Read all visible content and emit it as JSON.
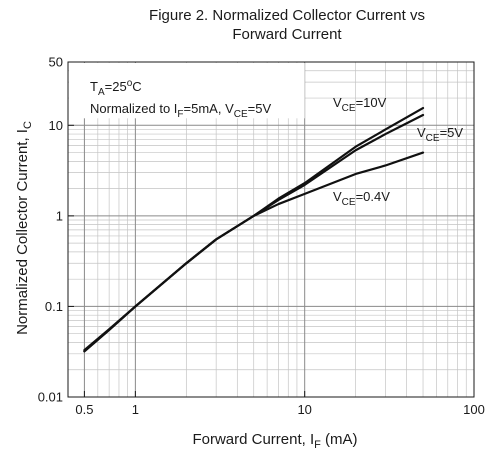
{
  "chart_data": {
    "type": "line",
    "title": [
      "Figure 2. Normalized Collector Current vs",
      "Forward Current"
    ],
    "xlabel": {
      "main": "Forward Current, I",
      "sub": "F",
      "suffix": " (mA)"
    },
    "ylabel": {
      "main": "Normalized Collector Current, I",
      "sub": "C"
    },
    "xscale": "log",
    "yscale": "log",
    "xlim": [
      0.4,
      100
    ],
    "ylim": [
      0.01,
      50
    ],
    "x_ticks": [
      {
        "value": 0.5,
        "label": "0.5"
      },
      {
        "value": 1,
        "label": "1"
      },
      {
        "value": 10,
        "label": "10"
      },
      {
        "value": 100,
        "label": "100"
      }
    ],
    "y_ticks": [
      {
        "value": 0.01,
        "label": "0.01"
      },
      {
        "value": 0.1,
        "label": "0.1"
      },
      {
        "value": 1,
        "label": "1"
      },
      {
        "value": 10,
        "label": "10"
      },
      {
        "value": 50,
        "label": "50"
      }
    ],
    "grid": true,
    "annotations": {
      "ta": {
        "main": "T",
        "sub": "A",
        "rest": "=25",
        "sup": "o",
        "end": "C"
      },
      "normalized": {
        "main": "Normalized to I",
        "sub1": "F",
        "mid": "=5mA, V",
        "sub2": "CE",
        "end": "=5V"
      }
    },
    "series": [
      {
        "label": {
          "main": "V",
          "sub": "CE",
          "rest": "=10V"
        },
        "x": [
          0.5,
          0.7,
          1,
          2,
          3,
          5,
          7,
          10,
          20,
          30,
          50
        ],
        "y": [
          0.032,
          0.055,
          0.1,
          0.3,
          0.55,
          1.0,
          1.55,
          2.3,
          5.8,
          9.0,
          15.5
        ]
      },
      {
        "label": {
          "main": "V",
          "sub": "CE",
          "rest": "=5V"
        },
        "x": [
          0.5,
          0.7,
          1,
          2,
          3,
          5,
          7,
          10,
          20,
          30,
          50
        ],
        "y": [
          0.032,
          0.055,
          0.1,
          0.3,
          0.55,
          1.0,
          1.5,
          2.2,
          5.3,
          8.0,
          13.0
        ]
      },
      {
        "label": {
          "main": "V",
          "sub": "CE",
          "rest": "=0.4V"
        },
        "x": [
          0.5,
          0.7,
          1,
          2,
          3,
          5,
          7,
          10,
          20,
          30,
          50
        ],
        "y": [
          0.033,
          0.056,
          0.1,
          0.3,
          0.55,
          1.0,
          1.35,
          1.75,
          2.9,
          3.6,
          5.0
        ]
      }
    ]
  }
}
